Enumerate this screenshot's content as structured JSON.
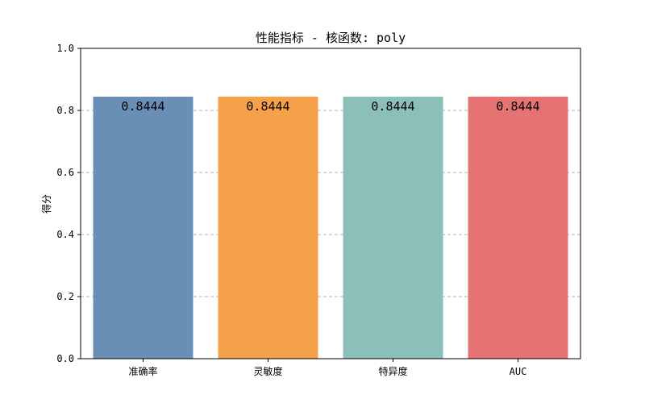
{
  "chart_data": {
    "type": "bar",
    "title": "性能指标 - 核函数: poly",
    "xlabel": "",
    "ylabel": "得分",
    "categories": [
      "准确率",
      "灵敏度",
      "特异度",
      "AUC"
    ],
    "values": [
      0.8444,
      0.8444,
      0.8444,
      0.8444
    ],
    "value_labels": [
      "0.8444",
      "0.8444",
      "0.8444",
      "0.8444"
    ],
    "colors": [
      "#6a8fb7",
      "#f5a04b",
      "#8bc0b9",
      "#e57373"
    ],
    "ylim": [
      0,
      1.0
    ],
    "yticks": [
      0.0,
      0.2,
      0.4,
      0.6,
      0.8,
      1.0
    ],
    "ytick_labels": [
      "0.0",
      "0.2",
      "0.4",
      "0.6",
      "0.8",
      "1.0"
    ],
    "grid": "horizontal dashed",
    "legend": "none"
  }
}
